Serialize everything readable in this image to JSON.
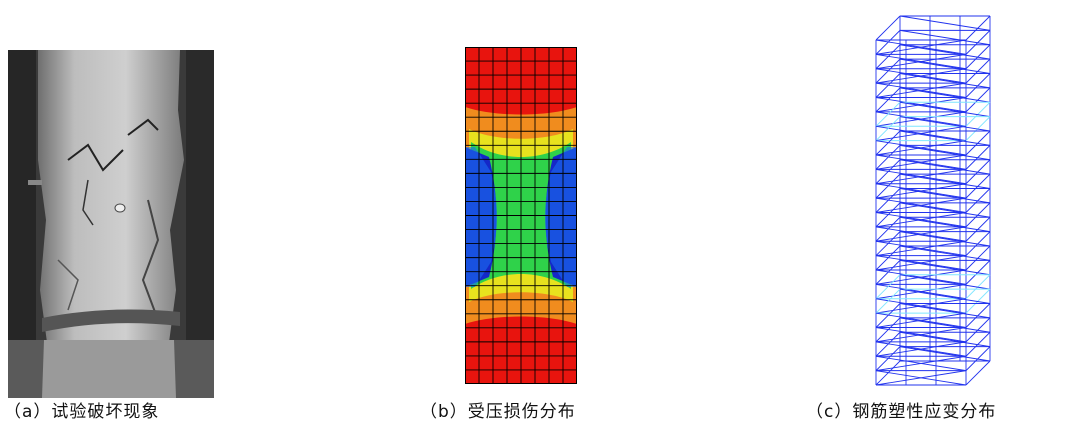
{
  "figure": {
    "panels": [
      {
        "id": "a",
        "caption": "（a）试验破坏现象"
      },
      {
        "id": "b",
        "caption": "（b）受压损伤分布"
      },
      {
        "id": "c",
        "caption": "（c）钢筋塑性应变分布"
      }
    ],
    "colors": {
      "damage_high": "#e8140e",
      "damage_mid_orange": "#f08c1e",
      "damage_mid_yellow": "#e8e21e",
      "damage_mid_green": "#2fd24a",
      "damage_low_blue": "#1428c8",
      "rebar_line": "#2233ee",
      "rebar_highlight": "#7fe6ff"
    }
  }
}
